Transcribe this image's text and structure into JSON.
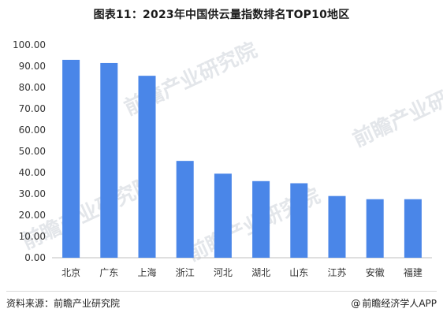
{
  "header": {
    "title": "图表11：2023年中国供云量指数排名TOP10地区"
  },
  "footer": {
    "source": "资料来源：前瞻产业研究院",
    "credit_icon": "at-icon",
    "credit_text": "前瞻经济学人APP"
  },
  "watermark": {
    "text": "前瞻产业研究院"
  },
  "colors": {
    "bar": "#4a86e8",
    "axis": "#bfbfbf",
    "tick_text": "#333333"
  },
  "chart_data": {
    "type": "bar",
    "title": "图表11：2023年中国供云量指数排名TOP10地区",
    "xlabel": "",
    "ylabel": "",
    "categories": [
      "北京",
      "广东",
      "上海",
      "浙江",
      "河北",
      "湖北",
      "山东",
      "江苏",
      "安徽",
      "福建"
    ],
    "values": [
      93.0,
      91.5,
      85.5,
      45.5,
      39.5,
      36.0,
      35.0,
      29.0,
      27.5,
      27.5
    ],
    "ylim": [
      0,
      100
    ],
    "yticks": [
      "0.00",
      "10.00",
      "20.00",
      "30.00",
      "40.00",
      "50.00",
      "60.00",
      "70.00",
      "80.00",
      "90.00",
      "100.00"
    ],
    "grid": false,
    "legend": "none"
  }
}
